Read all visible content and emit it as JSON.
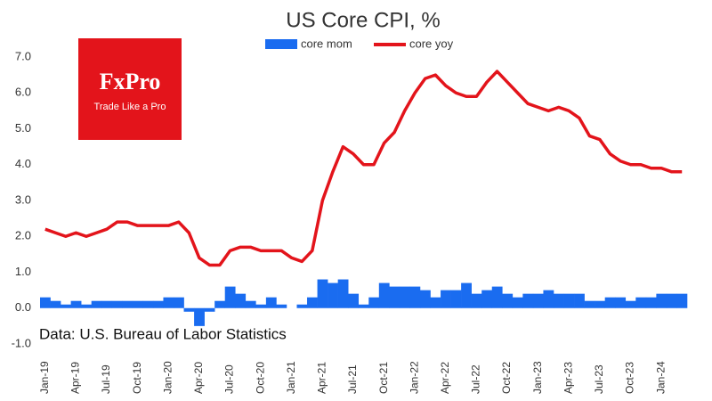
{
  "chart_data": {
    "type": "bar",
    "title": "US Core CPI, %",
    "source": "Data: U.S. Bureau of Labor Statistics",
    "logo": {
      "name": "FxPro",
      "tagline": "Trade Like a Pro",
      "color": "#e3141b"
    },
    "legend": "top",
    "grid": false,
    "ylim": [
      -1,
      7
    ],
    "yticks": [
      {
        "value": -1,
        "label": "-1.0"
      },
      {
        "value": 0,
        "label": "0.0"
      },
      {
        "value": 1,
        "label": "1.0"
      },
      {
        "value": 2,
        "label": "2.0"
      },
      {
        "value": 3,
        "label": "3.0"
      },
      {
        "value": 4,
        "label": "4.0"
      },
      {
        "value": 5,
        "label": "5.0"
      },
      {
        "value": 6,
        "label": "6.0"
      },
      {
        "value": 7,
        "label": "7.0"
      }
    ],
    "categories": [
      "Jan-19",
      null,
      null,
      "Apr-19",
      null,
      null,
      "Jul-19",
      null,
      null,
      "Oct-19",
      null,
      null,
      "Jan-20",
      null,
      null,
      "Apr-20",
      null,
      null,
      "Jul-20",
      null,
      null,
      "Oct-20",
      null,
      null,
      "Jan-21",
      null,
      null,
      "Apr-21",
      null,
      null,
      "Jul-21",
      null,
      null,
      "Oct-21",
      null,
      null,
      "Jan-22",
      null,
      null,
      "Apr-22",
      null,
      null,
      "Jul-22",
      null,
      null,
      "Oct-22",
      null,
      null,
      "Jan-23",
      null,
      null,
      "Apr-23",
      null,
      null,
      "Jul-23",
      null,
      null,
      "Oct-23",
      null,
      null,
      "Jan-24",
      null,
      null
    ],
    "series": [
      {
        "name": "core mom",
        "type": "bar",
        "color": "#1a6cf0",
        "values": [
          0.3,
          0.2,
          0.1,
          0.2,
          0.1,
          0.2,
          0.2,
          0.2,
          0.2,
          0.2,
          0.2,
          0.2,
          0.3,
          0.3,
          -0.1,
          -0.5,
          -0.1,
          0.2,
          0.6,
          0.4,
          0.2,
          0.1,
          0.3,
          0.1,
          0.0,
          0.1,
          0.3,
          0.8,
          0.7,
          0.8,
          0.4,
          0.1,
          0.3,
          0.7,
          0.6,
          0.6,
          0.6,
          0.5,
          0.3,
          0.5,
          0.5,
          0.7,
          0.4,
          0.5,
          0.6,
          0.4,
          0.3,
          0.4,
          0.4,
          0.5,
          0.4,
          0.4,
          0.4,
          0.2,
          0.2,
          0.3,
          0.3,
          0.2,
          0.3,
          0.3,
          0.4,
          0.4,
          0.4
        ]
      },
      {
        "name": "core yoy",
        "type": "line",
        "color": "#e3141b",
        "values": [
          2.2,
          2.1,
          2.0,
          2.1,
          2.0,
          2.1,
          2.2,
          2.4,
          2.4,
          2.3,
          2.3,
          2.3,
          2.3,
          2.4,
          2.1,
          1.4,
          1.2,
          1.2,
          1.6,
          1.7,
          1.7,
          1.6,
          1.6,
          1.6,
          1.4,
          1.3,
          1.6,
          3.0,
          3.8,
          4.5,
          4.3,
          4.0,
          4.0,
          4.6,
          4.9,
          5.5,
          6.0,
          6.4,
          6.5,
          6.2,
          6.0,
          5.9,
          5.9,
          6.3,
          6.6,
          6.3,
          6.0,
          5.7,
          5.6,
          5.5,
          5.6,
          5.5,
          5.3,
          4.8,
          4.7,
          4.3,
          4.1,
          4.0,
          4.0,
          3.9,
          3.9,
          3.8,
          3.8
        ]
      }
    ]
  }
}
